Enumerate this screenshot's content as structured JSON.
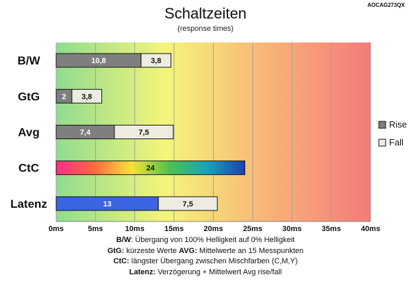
{
  "header": {
    "title": "Schaltzeiten",
    "subtitle": "(response times)",
    "code": "AOCAG273QX"
  },
  "notes": [
    {
      "bold": "B/W",
      "text": ":  Übergang von 100% Helligkeit auf 0% Helligkeit"
    },
    {
      "bold": "GtG:",
      "text": " kürzeste  Werte",
      "bold2": "AVG:",
      "text2": " Mittelwerte  an 15 Messpunkten"
    },
    {
      "bold": "CtC:",
      "text": " längster Übergang  zwischen Mischfarben (C,M,Y)"
    },
    {
      "bold": "Latenz:",
      "text": " Verzögerung  + Mittelwert Avg rise/fall"
    }
  ],
  "chart_data": {
    "type": "bar",
    "orientation": "horizontal",
    "stacked": true,
    "categories": [
      "B/W",
      "GtG",
      "Avg",
      "CtC",
      "Latenz"
    ],
    "xlim": [
      0,
      40
    ],
    "xticks": [
      "0ms",
      "5ms",
      "10ms",
      "15ms",
      "20ms",
      "25ms",
      "30ms",
      "35ms",
      "40ms"
    ],
    "xtick_values": [
      0,
      5,
      10,
      15,
      20,
      25,
      30,
      35,
      40
    ],
    "grid": true,
    "legend_position": "right",
    "legend": [
      {
        "name": "Rise",
        "color": "#7f7f7f"
      },
      {
        "name": "Fall",
        "color": "#eeece1"
      }
    ],
    "bars": [
      {
        "category": "B/W",
        "segments": [
          {
            "value": 10.8,
            "label": "10,8",
            "fill": "#7f7f7f",
            "text_color": "#ffffff"
          },
          {
            "value": 3.8,
            "label": "3,8",
            "fill": "#eeece1",
            "text_color": "#111111"
          }
        ]
      },
      {
        "category": "GtG",
        "segments": [
          {
            "value": 2,
            "label": "2",
            "fill": "#7f7f7f",
            "text_color": "#ffffff"
          },
          {
            "value": 3.8,
            "label": "3,8",
            "fill": "#eeece1",
            "text_color": "#111111"
          }
        ]
      },
      {
        "category": "Avg",
        "segments": [
          {
            "value": 7.4,
            "label": "7,4",
            "fill": "#7f7f7f",
            "text_color": "#ffffff"
          },
          {
            "value": 7.5,
            "label": "7,5",
            "fill": "#eeece1",
            "text_color": "#111111"
          }
        ]
      },
      {
        "category": "CtC",
        "segments": [
          {
            "value": 24,
            "label": "24",
            "fill": "rainbow",
            "text_color": "#111111"
          }
        ]
      },
      {
        "category": "Latenz",
        "segments": [
          {
            "value": 13,
            "label": "13",
            "fill": "#3b64e0",
            "text_color": "#ffffff"
          },
          {
            "value": 7.5,
            "label": "7,5",
            "fill": "#eeece1",
            "text_color": "#111111"
          }
        ]
      }
    ],
    "background_gradient": [
      "#8fdc8f",
      "#f5f57a",
      "#f8b878",
      "#f47a7a"
    ]
  }
}
